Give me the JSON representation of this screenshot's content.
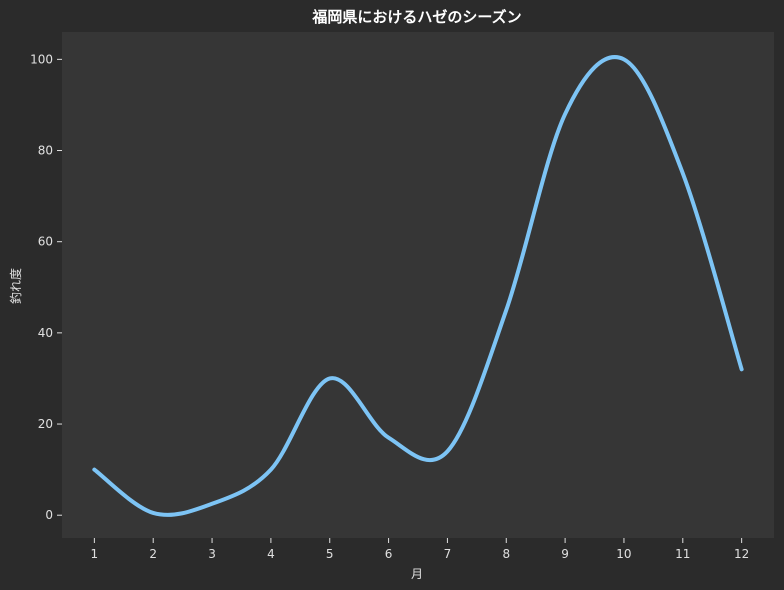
{
  "chart_data": {
    "type": "line",
    "title": "福岡県におけるハゼのシーズン",
    "xlabel": "月",
    "ylabel": "釣れ度",
    "x": [
      1,
      2,
      3,
      4,
      5,
      6,
      7,
      8,
      9,
      10,
      11,
      12
    ],
    "series": [
      {
        "values": [
          10,
          0.5,
          2.5,
          10,
          30,
          17,
          14,
          45,
          88,
          100,
          75,
          32
        ],
        "color": "#7dc4f5"
      }
    ],
    "xlim": [
      0.45,
      12.55
    ],
    "ylim": [
      -5,
      106
    ],
    "xticks": [
      1,
      2,
      3,
      4,
      5,
      6,
      7,
      8,
      9,
      10,
      11,
      12
    ],
    "yticks": [
      0,
      20,
      40,
      60,
      80,
      100
    ],
    "grid": false,
    "smooth": true,
    "background": "#2b2b2b",
    "plot_background": "#363636",
    "text_color": "#e0e0e0"
  }
}
